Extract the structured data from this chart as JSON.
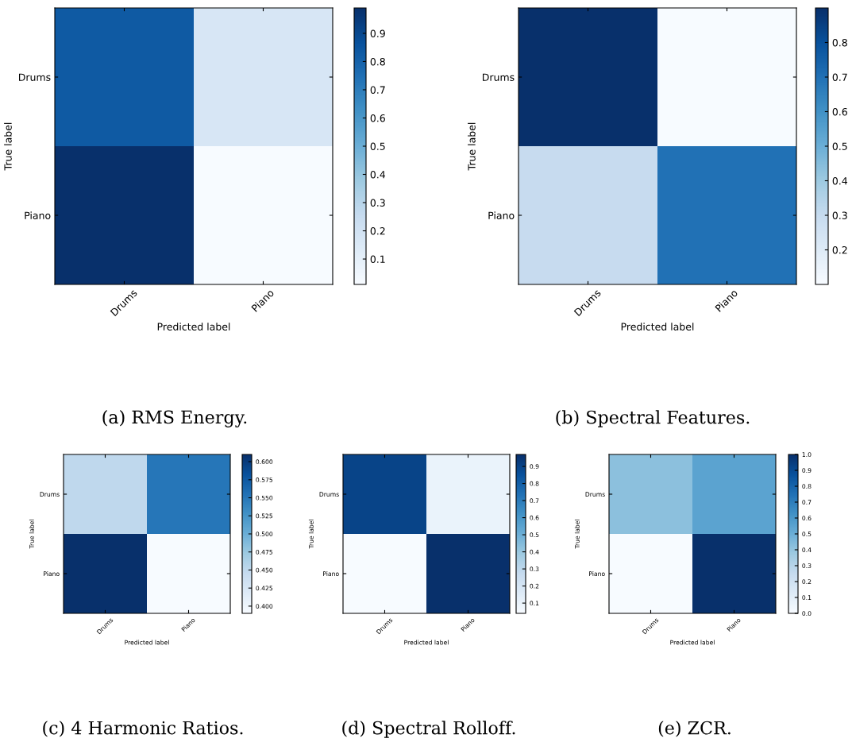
{
  "chart_data": [
    {
      "type": "heatmap",
      "categories": [
        "Drums",
        "Piano"
      ],
      "y_categories": [
        "Drums",
        "Piano"
      ],
      "xlabel": "Predicted label",
      "ylabel": "True label",
      "cells": [
        [
          0.83,
          0.17
        ],
        [
          0.99,
          0.01
        ]
      ],
      "clim": [
        0.01,
        0.99
      ],
      "cticks": [
        0.1,
        0.2,
        0.3,
        0.4,
        0.5,
        0.6,
        0.7,
        0.8,
        0.9
      ],
      "annotations": [
        "(a) RMS Energy."
      ]
    },
    {
      "type": "heatmap",
      "categories": [
        "Drums",
        "Piano"
      ],
      "y_categories": [
        "Drums",
        "Piano"
      ],
      "xlabel": "Predicted label",
      "ylabel": "True label",
      "cells": [
        [
          0.9,
          0.1
        ],
        [
          0.3,
          0.7
        ]
      ],
      "clim": [
        0.1,
        0.9
      ],
      "cticks": [
        0.2,
        0.3,
        0.4,
        0.5,
        0.6,
        0.7,
        0.8
      ],
      "annotations": [
        "(b) Spectral Features."
      ]
    },
    {
      "type": "heatmap",
      "categories": [
        "Drums",
        "Piano"
      ],
      "y_categories": [
        "Drums",
        "Piano"
      ],
      "xlabel": "Predicted label",
      "ylabel": "True label",
      "cells": [
        [
          0.45,
          0.55
        ],
        [
          0.61,
          0.39
        ]
      ],
      "clim": [
        0.39,
        0.61
      ],
      "cticks": [
        {
          "value": 0.4,
          "label": "0.400"
        },
        {
          "value": 0.425,
          "label": "0.425"
        },
        {
          "value": 0.45,
          "label": "0.450"
        },
        {
          "value": 0.475,
          "label": "0.475"
        },
        {
          "value": 0.5,
          "label": "0.500"
        },
        {
          "value": 0.525,
          "label": "0.525"
        },
        {
          "value": 0.55,
          "label": "0.550"
        },
        {
          "value": 0.575,
          "label": "0.575"
        },
        {
          "value": 0.6,
          "label": "0.600"
        }
      ],
      "annotations": [
        "(c) 4 Harmonic Ratios."
      ]
    },
    {
      "type": "heatmap",
      "categories": [
        "Drums",
        "Piano"
      ],
      "y_categories": [
        "Drums",
        "Piano"
      ],
      "xlabel": "Predicted label",
      "ylabel": "True label",
      "cells": [
        [
          0.9,
          0.1
        ],
        [
          0.04,
          0.97
        ]
      ],
      "clim": [
        0.04,
        0.97
      ],
      "cticks": [
        0.1,
        0.2,
        0.3,
        0.4,
        0.5,
        0.6,
        0.7,
        0.8,
        0.9
      ],
      "annotations": [
        "(d) Spectral Rolloff."
      ]
    },
    {
      "type": "heatmap",
      "categories": [
        "Drums",
        "Piano"
      ],
      "y_categories": [
        "Drums",
        "Piano"
      ],
      "xlabel": "Predicted label",
      "ylabel": "True label",
      "cells": [
        [
          0.42,
          0.55
        ],
        [
          0.0,
          1.0
        ]
      ],
      "clim": [
        0.0,
        1.0
      ],
      "cticks": [
        {
          "value": 0,
          "label": "0.0"
        },
        0.1,
        0.2,
        0.3,
        0.4,
        0.5,
        0.6,
        0.7,
        0.8,
        0.9,
        {
          "value": 1,
          "label": "1.0"
        }
      ],
      "annotations": [
        "(e) ZCR."
      ]
    }
  ]
}
